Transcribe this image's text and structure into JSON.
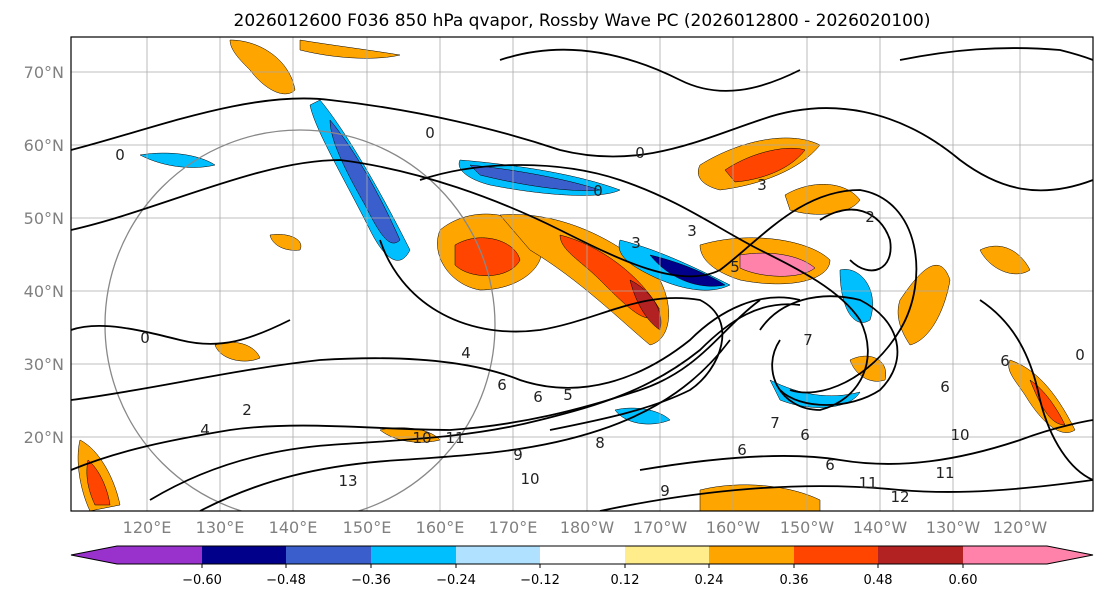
{
  "title": "2026012600 F036 850 hPa qvapor, Rossby Wave PC (2026012800 - 2026020100)",
  "map": {
    "lat_labels": [
      "70°N",
      "60°N",
      "50°N",
      "40°N",
      "30°N",
      "20°N"
    ],
    "lon_labels": [
      "120°E",
      "130°E",
      "140°E",
      "150°E",
      "160°E",
      "170°E",
      "180°W",
      "170°W",
      "160°W",
      "150°W",
      "140°W",
      "130°W",
      "120°W"
    ],
    "contour_labels": [
      "0",
      "0",
      "0",
      "0",
      "3",
      "3",
      "2",
      "3",
      "5",
      "4",
      "6",
      "6",
      "5",
      "7",
      "6",
      "6",
      "10",
      "11",
      "10",
      "11",
      "12",
      "13",
      "9",
      "8",
      "9",
      "10",
      "6",
      "7",
      "6",
      "0",
      "6",
      "0",
      "2",
      "11",
      "4"
    ]
  },
  "colorbar": {
    "ticks": [
      "−0.60",
      "−0.48",
      "−0.36",
      "−0.24",
      "−0.12",
      "0.12",
      "0.24",
      "0.36",
      "0.48",
      "0.60"
    ],
    "colors": [
      "#9932cc",
      "#00008b",
      "#3a5fcd",
      "#00bfff",
      "#b0e2ff",
      "#ffffff",
      "#ffec8b",
      "#ffa500",
      "#ff4500",
      "#b22222",
      "#ff82ab"
    ]
  }
}
